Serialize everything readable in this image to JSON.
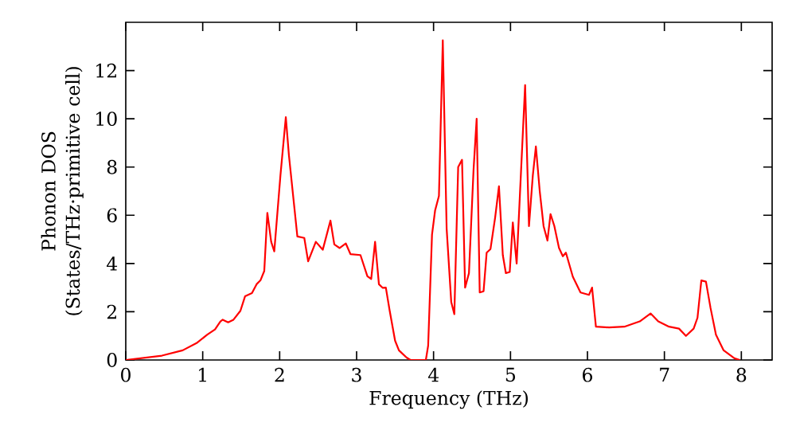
{
  "chart_data": {
    "type": "line",
    "xlabel": "Frequency (THz)",
    "ylabel": "Phonon DOS\n(States/THz·primitive cell)",
    "xlim": [
      0,
      8.4
    ],
    "ylim": [
      0,
      14
    ],
    "xticks": [
      0,
      1,
      2,
      3,
      4,
      5,
      6,
      7,
      8
    ],
    "yticks": [
      0,
      2,
      4,
      6,
      8,
      10,
      12
    ],
    "grid": false,
    "marker": "none",
    "line_style": "solid",
    "series": [
      {
        "color": "#ff0000",
        "x": [
          0,
          0.47,
          0.74,
          0.92,
          1.06,
          1.16,
          1.23,
          1.26,
          1.33,
          1.4,
          1.49,
          1.55,
          1.64,
          1.7,
          1.75,
          1.8,
          1.84,
          1.89,
          1.93,
          2.01,
          2.08,
          2.12,
          2.23,
          2.32,
          2.37,
          2.47,
          2.56,
          2.66,
          2.71,
          2.78,
          2.86,
          2.92,
          3.05,
          3.14,
          3.19,
          3.24,
          3.29,
          3.34,
          3.38,
          3.43,
          3.5,
          3.55,
          3.65,
          3.7,
          3.9,
          3.93,
          3.98,
          4.02,
          4.07,
          4.12,
          4.17,
          4.23,
          4.27,
          4.32,
          4.37,
          4.41,
          4.46,
          4.52,
          4.56,
          4.6,
          4.65,
          4.69,
          4.74,
          4.8,
          4.85,
          4.9,
          4.94,
          4.99,
          5.03,
          5.08,
          5.19,
          5.24,
          5.29,
          5.33,
          5.38,
          5.43,
          5.48,
          5.52,
          5.57,
          5.63,
          5.68,
          5.72,
          5.81,
          5.91,
          6.02,
          6.06,
          6.11,
          6.28,
          6.48,
          6.68,
          6.82,
          6.92,
          7.06,
          7.19,
          7.28,
          7.38,
          7.43,
          7.48,
          7.54,
          7.6,
          7.67,
          7.77,
          7.91,
          7.98
        ],
        "values": [
          0,
          0.18,
          0.4,
          0.7,
          1.05,
          1.27,
          1.6,
          1.67,
          1.56,
          1.67,
          2.04,
          2.64,
          2.77,
          3.14,
          3.3,
          3.69,
          6.1,
          4.9,
          4.5,
          7.65,
          10.07,
          8.5,
          5.12,
          5.06,
          4.09,
          4.9,
          4.57,
          5.78,
          4.79,
          4.64,
          4.83,
          4.39,
          4.35,
          3.47,
          3.36,
          4.9,
          3.14,
          2.99,
          3.0,
          2.04,
          0.8,
          0.4,
          0.1,
          0,
          0,
          0.6,
          5.2,
          6.2,
          6.8,
          13.25,
          5.45,
          2.4,
          1.9,
          8.0,
          8.3,
          3.0,
          3.6,
          7.9,
          10.0,
          2.8,
          2.85,
          4.45,
          4.6,
          5.9,
          7.2,
          4.35,
          3.6,
          3.65,
          5.7,
          4.0,
          11.4,
          5.55,
          7.65,
          8.85,
          7.0,
          5.55,
          4.95,
          6.05,
          5.55,
          4.65,
          4.3,
          4.45,
          3.45,
          2.8,
          2.7,
          3.0,
          1.38,
          1.35,
          1.38,
          1.6,
          1.93,
          1.6,
          1.38,
          1.3,
          1.0,
          1.3,
          1.75,
          3.3,
          3.25,
          2.15,
          1.05,
          0.4,
          0.07,
          0
        ]
      }
    ]
  }
}
